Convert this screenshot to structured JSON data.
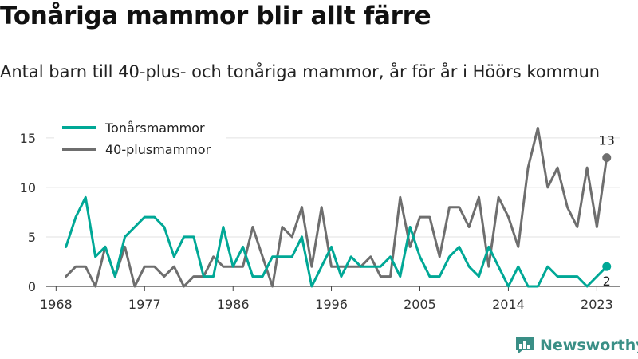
{
  "title": "Tonåriga mammor blir allt färre",
  "subtitle": "Antal barn till 40-plus- och tonåriga mammor, år för år i Höörs kommun",
  "brand": "Newsworthy",
  "colors": {
    "teen": "#00a896",
    "forty": "#6e6e6e",
    "grid": "#e2e2e2",
    "brand": "#3a8f86"
  },
  "chart_data": {
    "type": "line",
    "x": [
      1969,
      1970,
      1971,
      1972,
      1973,
      1974,
      1975,
      1976,
      1977,
      1978,
      1979,
      1980,
      1981,
      1982,
      1983,
      1984,
      1985,
      1986,
      1987,
      1988,
      1989,
      1990,
      1991,
      1992,
      1993,
      1994,
      1995,
      1996,
      1997,
      1998,
      1999,
      2000,
      2001,
      2002,
      2003,
      2004,
      2005,
      2006,
      2007,
      2008,
      2009,
      2010,
      2011,
      2012,
      2013,
      2014,
      2015,
      2016,
      2017,
      2018,
      2019,
      2020,
      2021,
      2022,
      2023,
      2024
    ],
    "series": [
      {
        "name": "Tonårsmammor",
        "color": "#00a896",
        "values": [
          4,
          7,
          9,
          3,
          4,
          1,
          5,
          6,
          7,
          7,
          6,
          3,
          5,
          5,
          1,
          1,
          6,
          2,
          4,
          1,
          1,
          3,
          3,
          3,
          5,
          0,
          2,
          4,
          1,
          3,
          2,
          2,
          2,
          3,
          1,
          6,
          3,
          1,
          1,
          3,
          4,
          2,
          1,
          4,
          2,
          0,
          2,
          0,
          0,
          2,
          1,
          1,
          1,
          0,
          1,
          2
        ]
      },
      {
        "name": "40-plusmammor",
        "color": "#6e6e6e",
        "values": [
          1,
          2,
          2,
          0,
          4,
          1,
          4,
          0,
          2,
          2,
          1,
          2,
          0,
          1,
          1,
          3,
          2,
          2,
          2,
          6,
          3,
          0,
          6,
          5,
          8,
          2,
          8,
          2,
          2,
          2,
          2,
          3,
          1,
          1,
          9,
          4,
          7,
          7,
          3,
          8,
          8,
          6,
          9,
          2,
          9,
          7,
          4,
          12,
          16,
          10,
          12,
          8,
          6,
          12,
          6,
          13
        ]
      }
    ],
    "xticks": [
      1968,
      1977,
      1986,
      1996,
      2005,
      2014,
      2023
    ],
    "yticks": [
      0,
      5,
      10,
      15
    ],
    "xlim": [
      1967,
      2025.4
    ],
    "ylim": [
      0,
      17
    ],
    "end_labels": {
      "Tonårsmammor": "2",
      "40-plusmammor": "13"
    },
    "grid": true,
    "legend_position": "top-left"
  }
}
